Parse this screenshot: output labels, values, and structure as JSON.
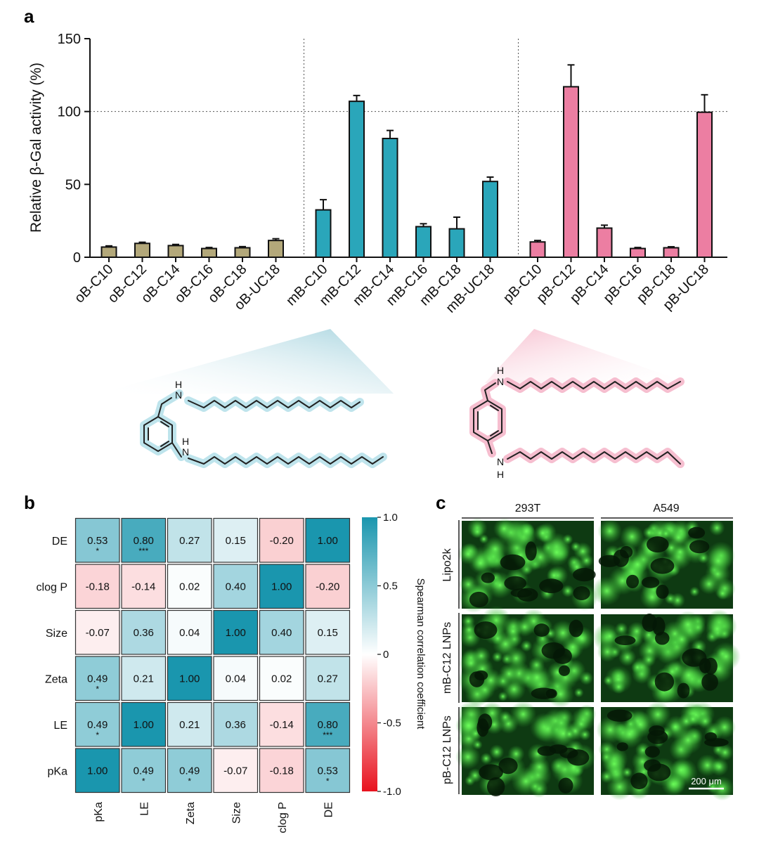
{
  "panels": {
    "a": {
      "letter": "a"
    },
    "b": {
      "letter": "b"
    },
    "c": {
      "letter": "c"
    }
  },
  "chart_data": [
    {
      "type": "bar",
      "ylabel": "Relative β-Gal activity (%)",
      "ylim": [
        0,
        150
      ],
      "yticks": [
        0,
        50,
        100,
        150
      ],
      "reference_line": 100,
      "groups": [
        {
          "color": "#b3a87a",
          "categories": [
            "oB-C10",
            "oB-C12",
            "oB-C14",
            "oB-C16",
            "oB-C18",
            "oB-UC18"
          ],
          "values": [
            7,
            9.5,
            8,
            6,
            6.5,
            11.5
          ],
          "errors": [
            0.8,
            0.8,
            0.8,
            0.7,
            0.8,
            1.2
          ]
        },
        {
          "color": "#2aa6ba",
          "categories": [
            "mB-C10",
            "mB-C12",
            "mB-C14",
            "mB-C16",
            "mB-C18",
            "mB-UC18"
          ],
          "values": [
            32.5,
            107,
            81.5,
            21,
            19.5,
            52
          ],
          "errors": [
            7,
            4,
            5.5,
            2,
            8,
            3
          ]
        },
        {
          "color": "#ec7ea2",
          "categories": [
            "pB-C10",
            "pB-C12",
            "pB-C14",
            "pB-C16",
            "pB-C18",
            "pB-UC18"
          ],
          "values": [
            10.5,
            117,
            20,
            6,
            6.5,
            99.5
          ],
          "errors": [
            1,
            15,
            2,
            0.7,
            0.7,
            12
          ]
        }
      ]
    },
    {
      "type": "heatmap",
      "rows": [
        "DE",
        "clog P",
        "Size",
        "Zeta",
        "LE",
        "pKa"
      ],
      "columns": [
        "pKa",
        "LE",
        "Zeta",
        "Size",
        "clog P",
        "DE"
      ],
      "values": [
        [
          0.53,
          0.8,
          0.27,
          0.15,
          -0.2,
          1.0
        ],
        [
          -0.18,
          -0.14,
          0.02,
          0.4,
          1.0,
          -0.2
        ],
        [
          -0.07,
          0.36,
          0.04,
          1.0,
          0.4,
          0.15
        ],
        [
          0.49,
          0.21,
          1.0,
          0.04,
          0.02,
          0.27
        ],
        [
          0.49,
          1.0,
          0.21,
          0.36,
          -0.14,
          0.8
        ],
        [
          1.0,
          0.49,
          0.49,
          -0.07,
          -0.18,
          0.53
        ]
      ],
      "labels": [
        [
          "0.53",
          "0.80",
          "0.27",
          "0.15",
          "-0.20",
          "1.00"
        ],
        [
          "-0.18",
          "-0.14",
          "0.02",
          "0.40",
          "1.00",
          "-0.20"
        ],
        [
          "-0.07",
          "0.36",
          "0.04",
          "1.00",
          "0.40",
          "0.15"
        ],
        [
          "0.49",
          "0.21",
          "1.00",
          "0.04",
          "0.02",
          "0.27"
        ],
        [
          "0.49",
          "1.00",
          "0.21",
          "0.36",
          "-0.14",
          "0.80"
        ],
        [
          "1.00",
          "0.49",
          "0.49",
          "-0.07",
          "-0.18",
          "0.53"
        ]
      ],
      "stars": [
        [
          "*",
          "***",
          "",
          "",
          "",
          ""
        ],
        [
          "",
          "",
          "",
          "",
          "",
          ""
        ],
        [
          "",
          "",
          "",
          "",
          "",
          ""
        ],
        [
          "*",
          "",
          "",
          "",
          "",
          ""
        ],
        [
          "*",
          "",
          "",
          "",
          "",
          "***"
        ],
        [
          "",
          "*",
          "*",
          "",
          "",
          "*"
        ]
      ],
      "colorbar": {
        "label": "Spearman correlation coefficient",
        "ticks": [
          "1.0",
          "0.5",
          "0",
          "-0.5",
          "-1.0"
        ],
        "tick_values": [
          1,
          0.5,
          0,
          -0.5,
          -1
        ],
        "range": [
          -1,
          1
        ],
        "color_max": "#1a96ae",
        "color_mid": "#ffffff",
        "color_min": "#e8121e"
      }
    }
  ],
  "microscopy": {
    "columns": [
      "293T",
      "A549"
    ],
    "rows": [
      "Lipo2k",
      "mB-C12 LNPs",
      "pB-C12 LNPs"
    ],
    "scale_bar": "200 μm",
    "tile_color": "#2ca02c"
  },
  "structures": {
    "atom_label": "N",
    "h_label": "H"
  }
}
